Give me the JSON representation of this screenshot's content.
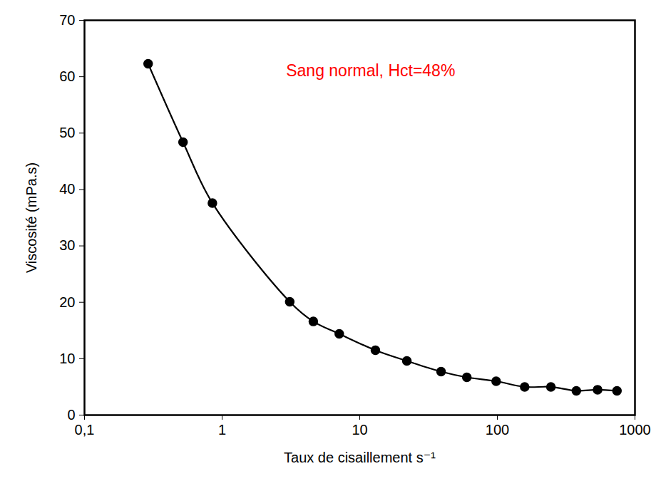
{
  "chart_data": {
    "type": "line",
    "x_label": "Taux de cisaillement s⁻¹",
    "y_label": "Viscosité (mPa.s)",
    "log": "x",
    "grid": false,
    "series": [
      {
        "name": "Sang normal, Hct=48%",
        "color": "#000000",
        "marker": "circle",
        "line_style": "solid",
        "x": [
          0.29,
          0.52,
          0.85,
          3.1,
          4.6,
          7.1,
          13,
          22,
          39,
          60,
          98,
          158,
          245,
          375,
          535,
          740
        ],
        "values": [
          62.3,
          48.4,
          37.6,
          20.1,
          16.6,
          14.4,
          11.5,
          9.6,
          7.7,
          6.7,
          6.0,
          5.0,
          5.0,
          4.3,
          4.5,
          4.3
        ]
      }
    ],
    "annotations": [
      {
        "text": "Sang normal, Hct=48%",
        "x": 12,
        "y": 61,
        "color": "#ff0000"
      }
    ],
    "xlim": [
      0.1,
      1000
    ],
    "xticks": [
      {
        "value": 0.1,
        "label": "0,1"
      },
      1,
      10,
      100,
      1000
    ],
    "ylim": [
      0,
      70
    ],
    "yticks": [
      0,
      10,
      20,
      30,
      40,
      50,
      60,
      70
    ]
  }
}
